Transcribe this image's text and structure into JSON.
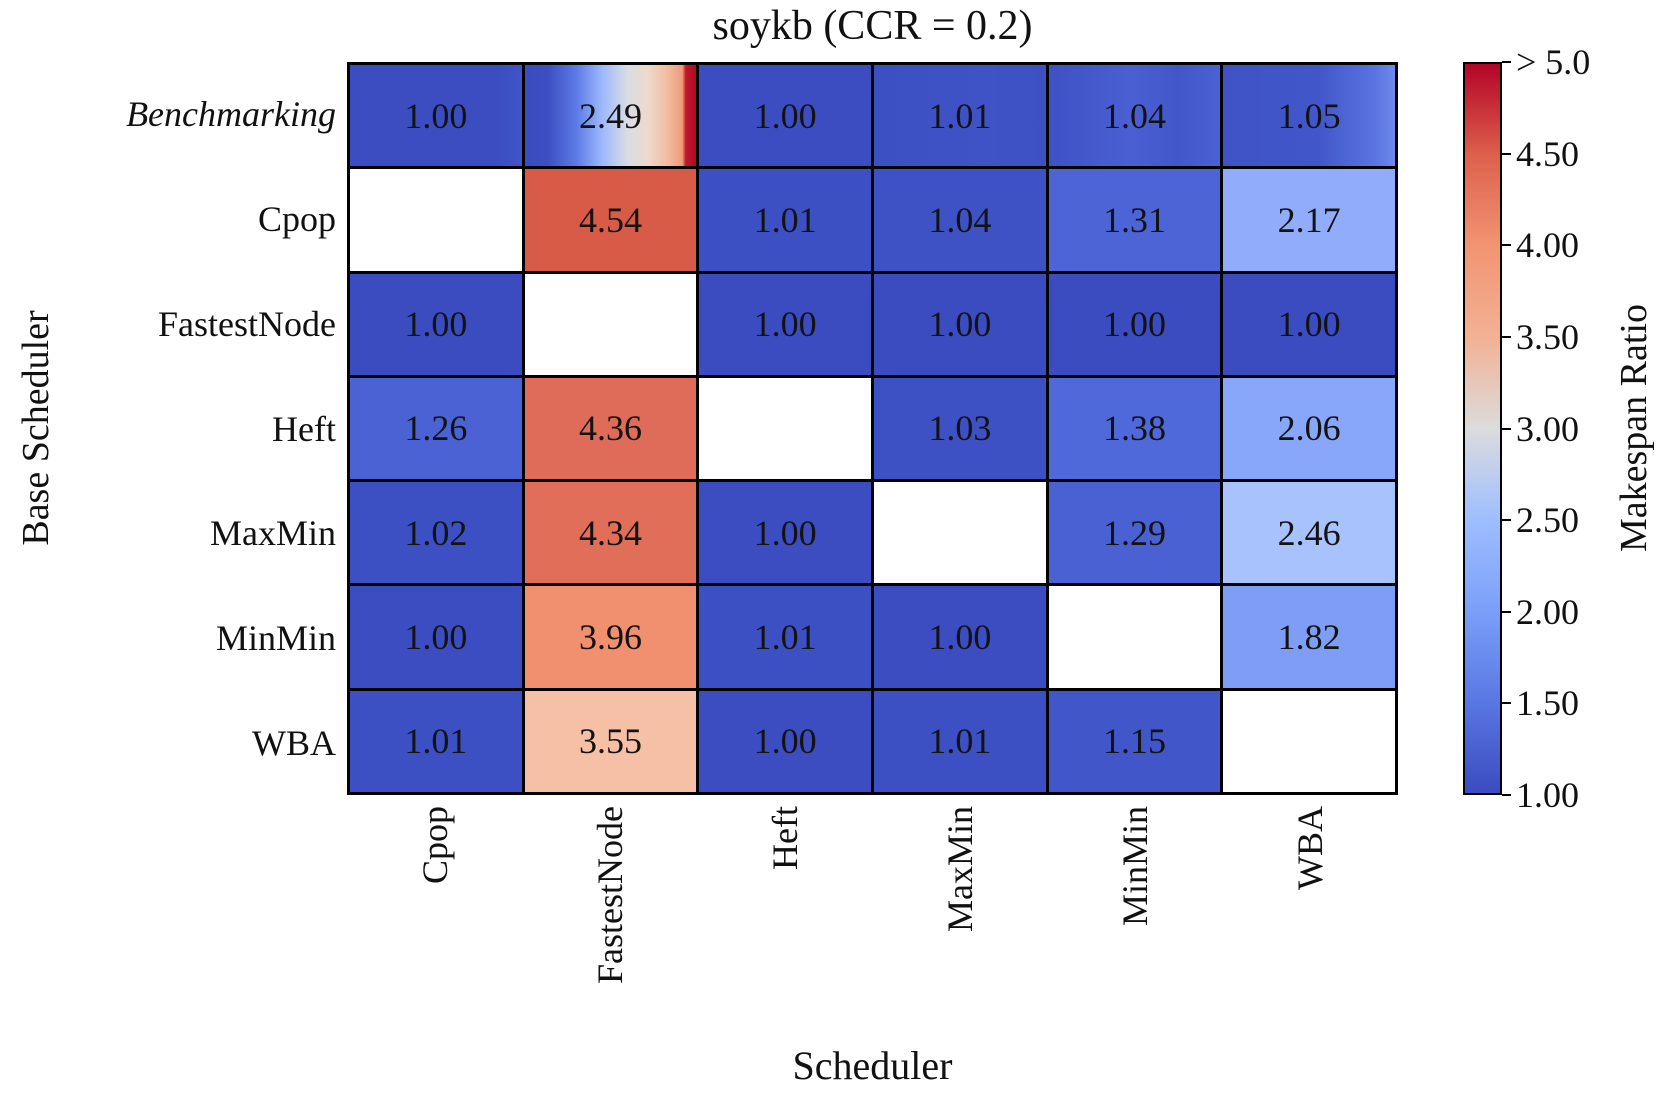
{
  "chart_data": {
    "type": "heatmap",
    "title": "soykb (CCR = 0.2)",
    "xlabel": "Scheduler",
    "ylabel": "Base Scheduler",
    "columns": [
      "Cpop",
      "FastestNode",
      "Heft",
      "MaxMin",
      "MinMin",
      "WBA"
    ],
    "rows": [
      {
        "label": "Benchmarking",
        "italic": true,
        "cells": [
          {
            "display": "1.00",
            "value": 1.0,
            "bg": "linear-gradient(90deg,#3b4dc1 0%,#3b4dc1 86%,#4055c9 100%)"
          },
          {
            "display": "2.49",
            "value": 2.49,
            "bg": "linear-gradient(90deg,#3b4cc0 0%,#3c4ec2 13%,#5c7ae5 30%,#9cb8fc 45%,#d9dde3 60%,#eed9cb 72%,#f2bda1 83%,#ef9c79 92%,#c31729 94%,#ab0c26 100%)"
          },
          {
            "display": "1.00",
            "value": 1.0,
            "bg": "#3b4dc1"
          },
          {
            "display": "1.01",
            "value": 1.01,
            "bg": "linear-gradient(90deg,#3c4fc3 0%,#3f53c7 65%,#3d51c5 100%)"
          },
          {
            "display": "1.04",
            "value": 1.04,
            "bg": "linear-gradient(90deg,#3e51c5 0%,#4a60d2 48%,#4257c9 76%,#4b62d4 100%)"
          },
          {
            "display": "1.05",
            "value": 1.05,
            "bg": "linear-gradient(90deg,#3f53c7 0%,#4157c9 55%,#5a73e0 88%,#6f89ec 100%)"
          }
        ]
      },
      {
        "label": "Cpop",
        "italic": false,
        "cells": [
          {
            "display": "",
            "value": null,
            "bg": "#ffffff"
          },
          {
            "display": "4.54",
            "value": 4.54,
            "bg": "#d75b47"
          },
          {
            "display": "1.01",
            "value": 1.01,
            "bg": "#3c4fc3"
          },
          {
            "display": "1.04",
            "value": 1.04,
            "bg": "#3e52c6"
          },
          {
            "display": "1.31",
            "value": 1.31,
            "bg": "#4c64d6"
          },
          {
            "display": "2.17",
            "value": 2.17,
            "bg": "#90acfb"
          }
        ]
      },
      {
        "label": "FastestNode",
        "italic": false,
        "cells": [
          {
            "display": "1.00",
            "value": 1.0,
            "bg": "#3b4cc0"
          },
          {
            "display": "",
            "value": null,
            "bg": "#ffffff"
          },
          {
            "display": "1.00",
            "value": 1.0,
            "bg": "#3b4cc0"
          },
          {
            "display": "1.00",
            "value": 1.0,
            "bg": "#3b4cc0"
          },
          {
            "display": "1.00",
            "value": 1.0,
            "bg": "#3b4cc0"
          },
          {
            "display": "1.00",
            "value": 1.0,
            "bg": "#3b4cc0"
          }
        ]
      },
      {
        "label": "Heft",
        "italic": false,
        "cells": [
          {
            "display": "1.26",
            "value": 1.26,
            "bg": "#4a62d3"
          },
          {
            "display": "4.36",
            "value": 4.36,
            "bg": "#df6c58"
          },
          {
            "display": "",
            "value": null,
            "bg": "#ffffff"
          },
          {
            "display": "1.03",
            "value": 1.03,
            "bg": "#3d51c5"
          },
          {
            "display": "1.38",
            "value": 1.38,
            "bg": "#5069da"
          },
          {
            "display": "2.06",
            "value": 2.06,
            "bg": "#89a7fa"
          }
        ]
      },
      {
        "label": "MaxMin",
        "italic": false,
        "cells": [
          {
            "display": "1.02",
            "value": 1.02,
            "bg": "#3c50c4"
          },
          {
            "display": "4.34",
            "value": 4.34,
            "bg": "#e06e59"
          },
          {
            "display": "1.00",
            "value": 1.0,
            "bg": "#3b4dc1"
          },
          {
            "display": "",
            "value": null,
            "bg": "#ffffff"
          },
          {
            "display": "1.29",
            "value": 1.29,
            "bg": "#4961d2"
          },
          {
            "display": "2.46",
            "value": 2.46,
            "bg": "#a7c2fd"
          }
        ]
      },
      {
        "label": "MinMin",
        "italic": false,
        "cells": [
          {
            "display": "1.00",
            "value": 1.0,
            "bg": "#3b4dc1"
          },
          {
            "display": "3.96",
            "value": 3.96,
            "bg": "#f0906e"
          },
          {
            "display": "1.01",
            "value": 1.01,
            "bg": "#3c4fc3"
          },
          {
            "display": "1.00",
            "value": 1.0,
            "bg": "#3b4dc1"
          },
          {
            "display": "",
            "value": null,
            "bg": "#ffffff"
          },
          {
            "display": "1.82",
            "value": 1.82,
            "bg": "#7e9ef6"
          }
        ]
      },
      {
        "label": "WBA",
        "italic": false,
        "cells": [
          {
            "display": "1.01",
            "value": 1.01,
            "bg": "#3c4fc3"
          },
          {
            "display": "3.55",
            "value": 3.55,
            "bg": "#f5c0a6"
          },
          {
            "display": "1.00",
            "value": 1.0,
            "bg": "#3b4dc1"
          },
          {
            "display": "1.01",
            "value": 1.01,
            "bg": "#3c4fc3"
          },
          {
            "display": "1.15",
            "value": 1.15,
            "bg": "#4156c8"
          },
          {
            "display": "",
            "value": null,
            "bg": "#ffffff"
          }
        ]
      }
    ],
    "colorbar": {
      "label": "Makespan Ratio",
      "tick_labels": [
        "> 5.0",
        "4.50",
        "4.00",
        "3.50",
        "3.00",
        "2.50",
        "2.00",
        "1.50",
        "1.00"
      ],
      "vmin": 1.0,
      "vmax": 5.0,
      "gradient_stops_bottom_to_top": [
        "#3b4cc0",
        "#5977e3",
        "#7b9ff9",
        "#9ebeff",
        "#dcdcdc",
        "#f3b194",
        "#f29472",
        "#dd604c",
        "#b40426"
      ]
    },
    "colors": {
      "cmap_min": "#3b4cc0",
      "cmap_mid": "#dcdcdc",
      "cmap_max": "#b40426",
      "gridline": "#000000",
      "empty_cell": "#ffffff"
    },
    "legend_position": "right",
    "grid": true
  }
}
